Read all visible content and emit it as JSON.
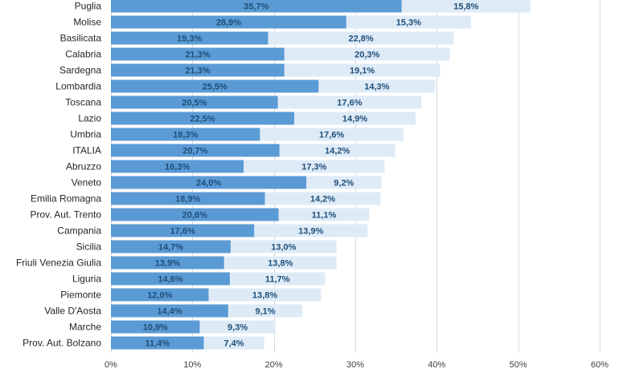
{
  "chart_data": {
    "type": "bar",
    "orientation": "horizontal",
    "stacked": true,
    "categories": [
      "Puglia",
      "Molise",
      "Basilicata",
      "Calabria",
      "Sardegna",
      "Lombardia",
      "Toscana",
      "Lazio",
      "Umbria",
      "ITALIA",
      "Abruzzo",
      "Veneto",
      "Emilia Romagna",
      "Prov. Aut. Trento",
      "Campania",
      "Sicilia",
      "Friuli Venezia Giulia",
      "Liguria",
      "Piemonte",
      "Valle D'Aosta",
      "Marche",
      "Prov. Aut. Bolzano"
    ],
    "series": [
      {
        "color": "#5b9bd5",
        "values": [
          35.7,
          28.9,
          19.3,
          21.3,
          21.3,
          25.5,
          20.5,
          22.5,
          18.3,
          20.7,
          16.3,
          24.0,
          18.9,
          20.6,
          17.6,
          14.7,
          13.9,
          14.6,
          12.0,
          14.4,
          10.9,
          11.4
        ],
        "labels": [
          "35,7%",
          "28,9%",
          "19,3%",
          "21,3%",
          "21,3%",
          "25,5%",
          "20,5%",
          "22,5%",
          "18,3%",
          "20,7%",
          "16,3%",
          "24,0%",
          "18,9%",
          "20,6%",
          "17,6%",
          "14,7%",
          "13,9%",
          "14,6%",
          "12,0%",
          "14,4%",
          "10,9%",
          "11,4%"
        ]
      },
      {
        "color": "#deebf7",
        "values": [
          15.8,
          15.3,
          22.8,
          20.3,
          19.1,
          14.3,
          17.6,
          14.9,
          17.6,
          14.2,
          17.3,
          9.2,
          14.2,
          11.1,
          13.9,
          13.0,
          13.8,
          11.7,
          13.8,
          9.1,
          9.3,
          7.4
        ],
        "labels": [
          "15,8%",
          "15,3%",
          "22,8%",
          "20,3%",
          "19,1%",
          "14,3%",
          "17,6%",
          "14,9%",
          "17,6%",
          "14,2%",
          "17,3%",
          "9,2%",
          "14,2%",
          "11,1%",
          "13,9%",
          "13,0%",
          "13,8%",
          "11,7%",
          "13,8%",
          "9,1%",
          "9,3%",
          "7,4%"
        ]
      }
    ],
    "xlim": [
      0,
      60
    ],
    "x_ticks": [
      0,
      10,
      20,
      30,
      40,
      50,
      60
    ],
    "x_tick_labels": [
      "0%",
      "10%",
      "20%",
      "30%",
      "40%",
      "50%",
      "60%"
    ],
    "grid": true,
    "title": "",
    "xlabel": "",
    "ylabel": ""
  }
}
